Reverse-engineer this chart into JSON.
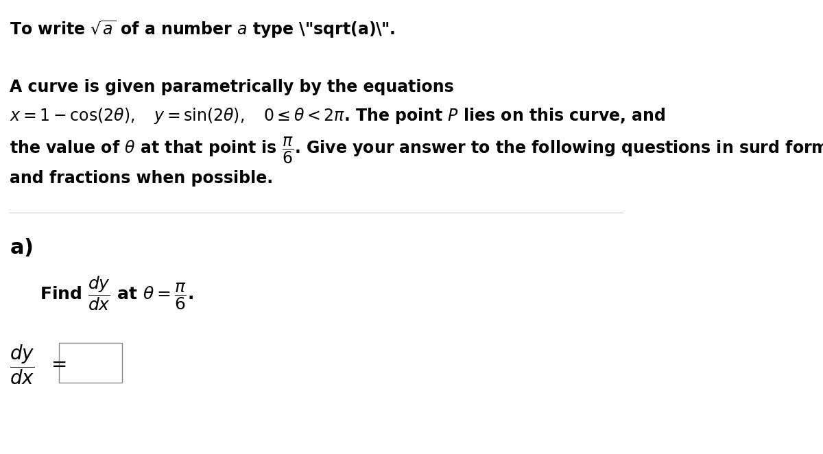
{
  "background_color": "#ffffff",
  "figsize": [
    12.0,
    6.62
  ],
  "dpi": 100,
  "font_size_main": 17,
  "font_size_label_a": 22,
  "text_color": "#000000",
  "separator_color": "#cccccc",
  "box_edge_color": "#888888"
}
